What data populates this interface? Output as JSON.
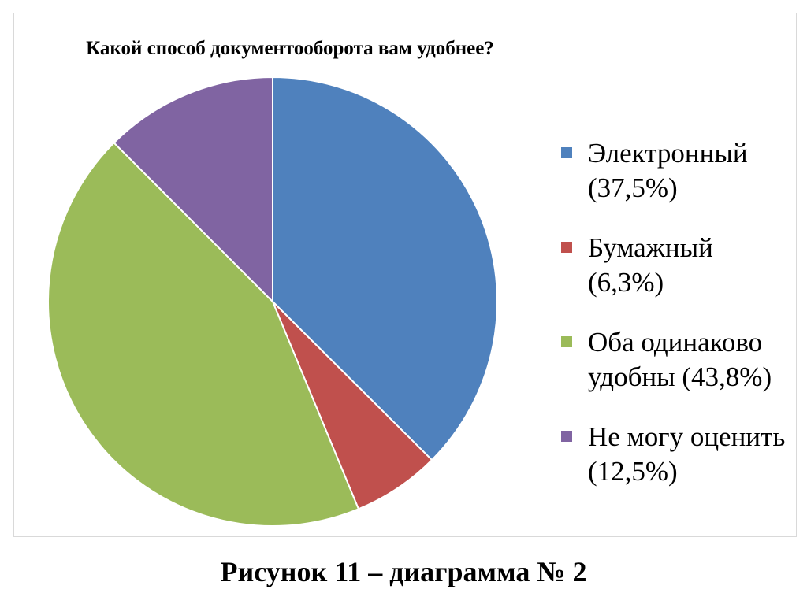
{
  "chart_data": {
    "type": "pie",
    "title": "Какой способ документооборота вам удобнее?",
    "legend_position": "right",
    "start_angle": "top",
    "direction": "clockwise",
    "slices": [
      {
        "label": "Электронный (37,5%)",
        "value": 37.5,
        "color": "#4F81BD"
      },
      {
        "label": "Бумажный (6,3%)",
        "value": 6.3,
        "color": "#C0504D"
      },
      {
        "label": "Оба одинаково удобны (43,8%)",
        "value": 43.8,
        "color": "#9BBB59"
      },
      {
        "label": "Не могу оценить (12,5%)",
        "value": 12.5,
        "color": "#8064A2"
      }
    ]
  },
  "caption": "Рисунок 11 – диаграмма № 2"
}
